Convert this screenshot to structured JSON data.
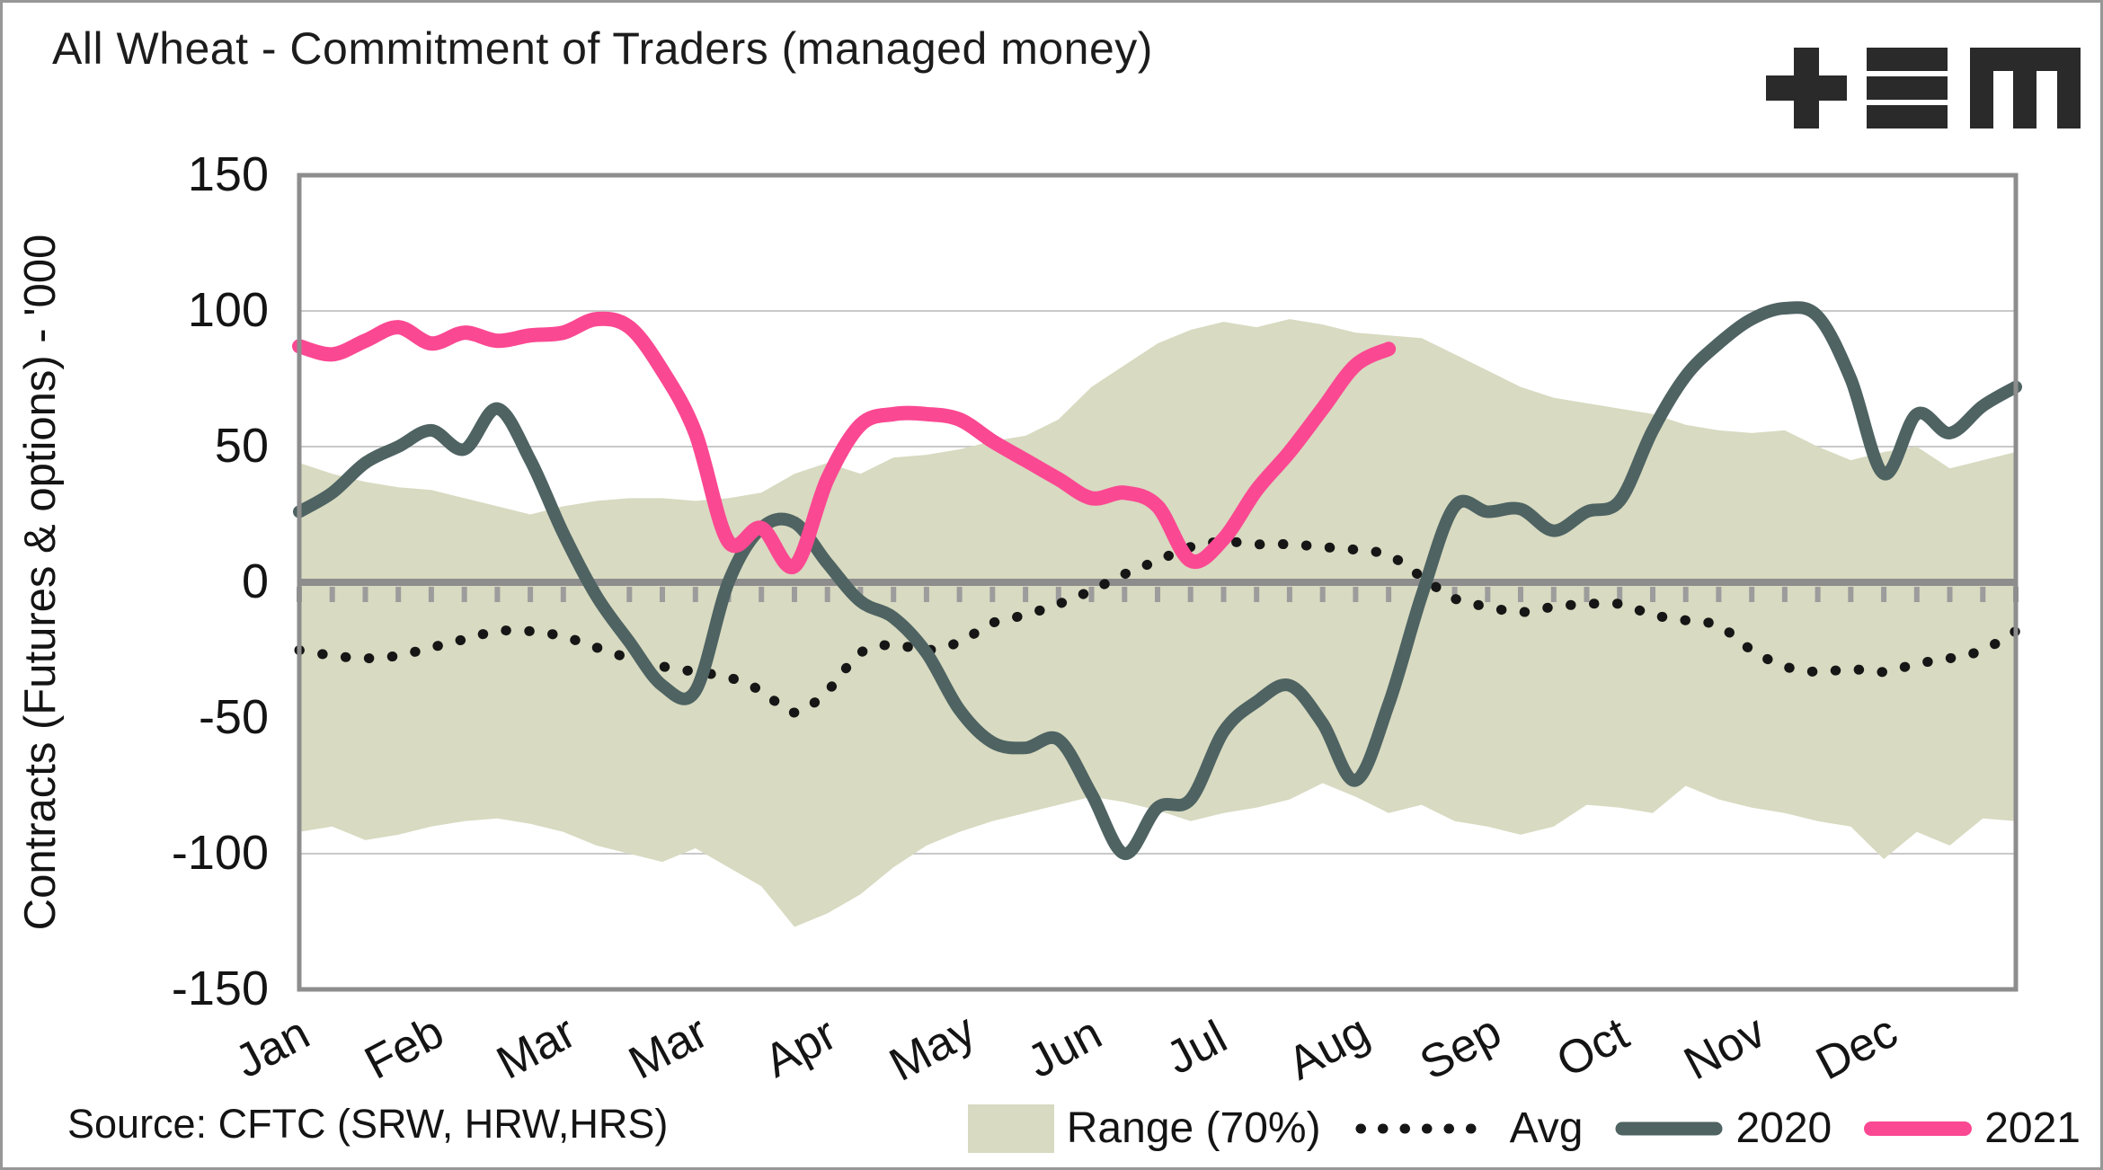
{
  "header": {
    "title": "All Wheat - Commitment of Traders (managed money)",
    "logo": "tem-logo"
  },
  "footer": {
    "source": "Source: CFTC (SRW, HRW,HRS)"
  },
  "chart_data": {
    "type": "line",
    "title": "All Wheat - Commitment of Traders (managed money)",
    "xlabel": "",
    "ylabel": "Contracts (Futures & options) - '000",
    "ylim": [
      -150,
      150
    ],
    "yticks": [
      150,
      100,
      50,
      0,
      -50,
      -100,
      -150
    ],
    "x_tick_labels": [
      "Jan",
      "Feb",
      "Mar",
      "Mar",
      "Apr",
      "May",
      "Jun",
      "Jul",
      "Aug",
      "Sep",
      "Oct",
      "Nov",
      "Dec"
    ],
    "label_every": 4,
    "weeks": 53,
    "grid": "horizontal",
    "legend_position": "bottom",
    "colors": {
      "gridline": "#c9c9c9",
      "axis": "#8d8d8d",
      "tick": "#9c9c9c",
      "frame": "#8d8d8d",
      "text": "#141414"
    },
    "band": {
      "name": "Range (70%)",
      "color": "#d8dac1",
      "top": [
        44,
        40,
        37,
        35,
        34,
        31,
        28,
        25,
        28,
        30,
        31,
        31,
        30,
        31,
        33,
        40,
        44,
        40,
        46,
        47,
        49,
        52,
        54,
        60,
        72,
        80,
        88,
        93,
        96,
        94,
        97,
        95,
        92,
        91,
        90,
        84,
        78,
        72,
        68,
        66,
        64,
        62,
        58,
        56,
        55,
        56,
        50,
        45,
        48,
        50,
        42,
        45,
        48
      ],
      "bottom": [
        -92,
        -90,
        -95,
        -93,
        -90,
        -88,
        -87,
        -89,
        -92,
        -97,
        -100,
        -103,
        -98,
        -105,
        -112,
        -127,
        -122,
        -115,
        -105,
        -97,
        -92,
        -88,
        -85,
        -82,
        -79,
        -81,
        -84,
        -88,
        -85,
        -83,
        -80,
        -74,
        -79,
        -85,
        -82,
        -88,
        -90,
        -93,
        -90,
        -82,
        -83,
        -85,
        -75,
        -80,
        -83,
        -85,
        -88,
        -90,
        -102,
        -92,
        -97,
        -87,
        -88
      ]
    },
    "series": [
      {
        "name": "Avg",
        "style": "dotted",
        "color": "#161616",
        "values": [
          -25,
          -27,
          -28,
          -27,
          -24,
          -21,
          -18,
          -18,
          -20,
          -24,
          -28,
          -31,
          -33,
          -35,
          -40,
          -48,
          -40,
          -26,
          -23,
          -25,
          -22,
          -15,
          -12,
          -8,
          -3,
          3,
          8,
          13,
          15,
          14,
          14,
          13,
          12,
          10,
          2,
          -6,
          -9,
          -11,
          -9,
          -8,
          -8,
          -12,
          -14,
          -16,
          -25,
          -31,
          -33,
          -32,
          -33,
          -30,
          -28,
          -25,
          -18
        ]
      },
      {
        "name": "2020",
        "style": "solid",
        "color": "#4e6362",
        "values": [
          26,
          33,
          44,
          50,
          56,
          49,
          64,
          45,
          18,
          -5,
          -22,
          -38,
          -40,
          0,
          20,
          22,
          7,
          -7,
          -13,
          -26,
          -47,
          -59,
          -61,
          -58,
          -78,
          -100,
          -83,
          -80,
          -55,
          -44,
          -38,
          -52,
          -73,
          -45,
          -5,
          28,
          26,
          27,
          19,
          26,
          30,
          56,
          76,
          88,
          97,
          101,
          98,
          75,
          40,
          62,
          55,
          65,
          72
        ]
      },
      {
        "name": "2021",
        "style": "solid",
        "color": "#fb4892",
        "values": [
          87,
          84,
          89,
          94,
          88,
          92,
          89,
          91,
          92,
          97,
          94,
          78,
          55,
          15,
          20,
          6,
          38,
          58,
          62,
          62,
          60,
          52,
          45,
          38,
          31,
          33,
          28,
          8,
          16,
          34,
          48,
          64,
          80,
          86
        ]
      }
    ]
  }
}
